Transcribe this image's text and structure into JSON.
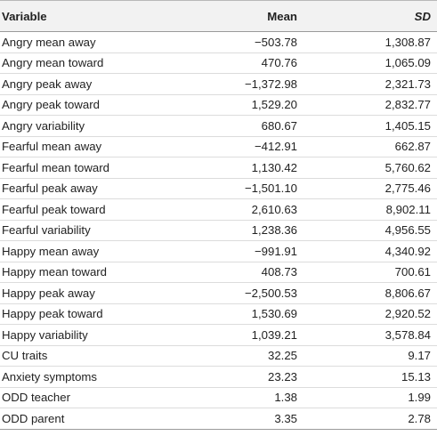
{
  "table": {
    "headers": {
      "variable": "Variable",
      "mean": "Mean",
      "sd": "SD"
    },
    "rows": [
      {
        "variable": "Angry mean away",
        "mean": "−503.78",
        "sd": "1,308.87"
      },
      {
        "variable": "Angry mean toward",
        "mean": "470.76",
        "sd": "1,065.09"
      },
      {
        "variable": "Angry peak away",
        "mean": "−1,372.98",
        "sd": "2,321.73"
      },
      {
        "variable": "Angry peak toward",
        "mean": "1,529.20",
        "sd": "2,832.77"
      },
      {
        "variable": "Angry variability",
        "mean": "680.67",
        "sd": "1,405.15"
      },
      {
        "variable": "Fearful mean away",
        "mean": "−412.91",
        "sd": "662.87"
      },
      {
        "variable": "Fearful mean toward",
        "mean": "1,130.42",
        "sd": "5,760.62"
      },
      {
        "variable": "Fearful peak away",
        "mean": "−1,501.10",
        "sd": "2,775.46"
      },
      {
        "variable": "Fearful peak toward",
        "mean": "2,610.63",
        "sd": "8,902.11"
      },
      {
        "variable": "Fearful variability",
        "mean": "1,238.36",
        "sd": "4,956.55"
      },
      {
        "variable": "Happy mean away",
        "mean": "−991.91",
        "sd": "4,340.92"
      },
      {
        "variable": "Happy mean toward",
        "mean": "408.73",
        "sd": "700.61"
      },
      {
        "variable": "Happy peak away",
        "mean": "−2,500.53",
        "sd": "8,806.67"
      },
      {
        "variable": "Happy peak toward",
        "mean": "1,530.69",
        "sd": "2,920.52"
      },
      {
        "variable": "Happy variability",
        "mean": "1,039.21",
        "sd": "3,578.84"
      },
      {
        "variable": "CU traits",
        "mean": "32.25",
        "sd": "9.17"
      },
      {
        "variable": "Anxiety symptoms",
        "mean": "23.23",
        "sd": "15.13"
      },
      {
        "variable": "ODD teacher",
        "mean": "1.38",
        "sd": "1.99"
      },
      {
        "variable": "ODD parent",
        "mean": "3.35",
        "sd": "2.78"
      }
    ]
  }
}
